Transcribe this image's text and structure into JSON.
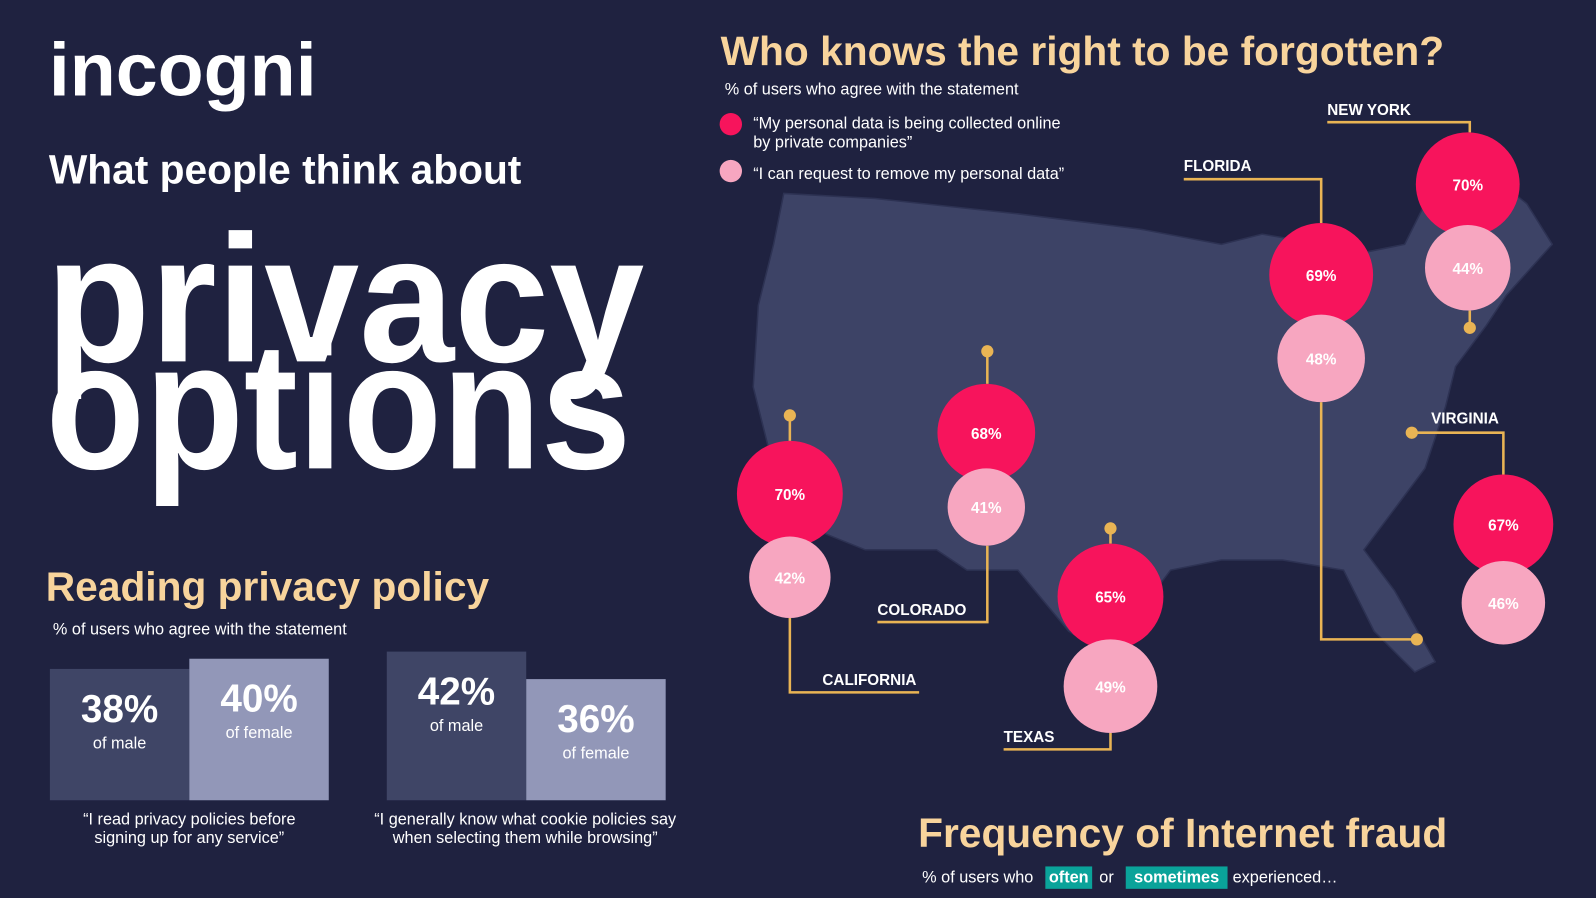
{
  "brand": "incogni",
  "hero": {
    "kicker": "What people think about",
    "title_lines": [
      "privacy",
      "options"
    ]
  },
  "reading": {
    "title": "Reading privacy policy",
    "subtitle": "% of users who agree with the statement",
    "groups": [
      {
        "male": {
          "value": "38%",
          "label": "of male"
        },
        "female": {
          "value": "40%",
          "label": "of female"
        },
        "quote_lines": [
          "“I read privacy policies before",
          "signing up for any service”"
        ]
      },
      {
        "male": {
          "value": "42%",
          "label": "of male"
        },
        "female": {
          "value": "36%",
          "label": "of female"
        },
        "quote_lines": [
          "“I generally know what cookie policies say",
          "when selecting them while browsing”"
        ]
      }
    ]
  },
  "map": {
    "title": "Who knows the right to be forgotten?",
    "subtitle": "% of users who agree with the statement",
    "legend": [
      {
        "lines": [
          "“My personal data is being collected online",
          "by private companies”"
        ]
      },
      {
        "lines": [
          "“I can request to remove my personal data”"
        ]
      }
    ],
    "states": [
      {
        "name": "CALIFORNIA",
        "collected": "70%",
        "remove": "42%"
      },
      {
        "name": "COLORADO",
        "collected": "68%",
        "remove": "41%"
      },
      {
        "name": "TEXAS",
        "collected": "65%",
        "remove": "49%"
      },
      {
        "name": "FLORIDA",
        "collected": "69%",
        "remove": "48%"
      },
      {
        "name": "NEW YORK",
        "collected": "70%",
        "remove": "44%"
      },
      {
        "name": "VIRGINIA",
        "collected": "67%",
        "remove": "46%"
      }
    ]
  },
  "fraud": {
    "title": "Frequency of Internet fraud",
    "subtitle_parts": [
      "% of users who",
      "often",
      "or",
      "sometimes",
      "experienced…"
    ]
  }
}
